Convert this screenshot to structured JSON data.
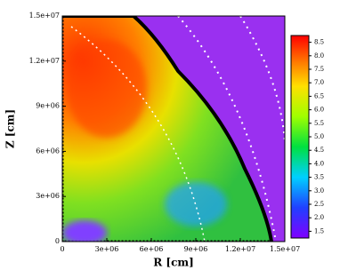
{
  "chart_data": {
    "type": "heatmap",
    "xlabel": "R [cm]",
    "ylabel": "Z [cm]",
    "xlim": [
      0,
      15000000
    ],
    "ylim": [
      0,
      15000000
    ],
    "xticks": [
      0,
      {
        "value": 3000000,
        "label": "3e+06"
      },
      {
        "value": 6000000,
        "label": "6e+06"
      },
      {
        "value": 9000000,
        "label": "9e+06"
      },
      {
        "value": 12000000,
        "label": "1.2e+07"
      },
      {
        "value": 15000000,
        "label": "1.5e+07"
      }
    ],
    "yticks": [
      0,
      {
        "value": 3000000,
        "label": "3e+06"
      },
      {
        "value": 6000000,
        "label": "6e+06"
      },
      {
        "value": 9000000,
        "label": "9e+06"
      },
      {
        "value": 12000000,
        "label": "1.2e+07"
      },
      {
        "value": 15000000,
        "label": "1.5e+07"
      }
    ],
    "clim": [
      1.25,
      8.75
    ],
    "cticks": [
      1.5,
      {
        "value": 2,
        "label": "2.0"
      },
      2.5,
      {
        "value": 3,
        "label": "3.0"
      },
      3.5,
      {
        "value": 4,
        "label": "4.0"
      },
      4.5,
      {
        "value": 5,
        "label": "5.0"
      },
      5.5,
      {
        "value": 6,
        "label": "6.0"
      },
      6.5,
      {
        "value": 7,
        "label": "7.0"
      },
      7.5,
      {
        "value": 8,
        "label": "8.0"
      },
      8.5
    ]
  }
}
